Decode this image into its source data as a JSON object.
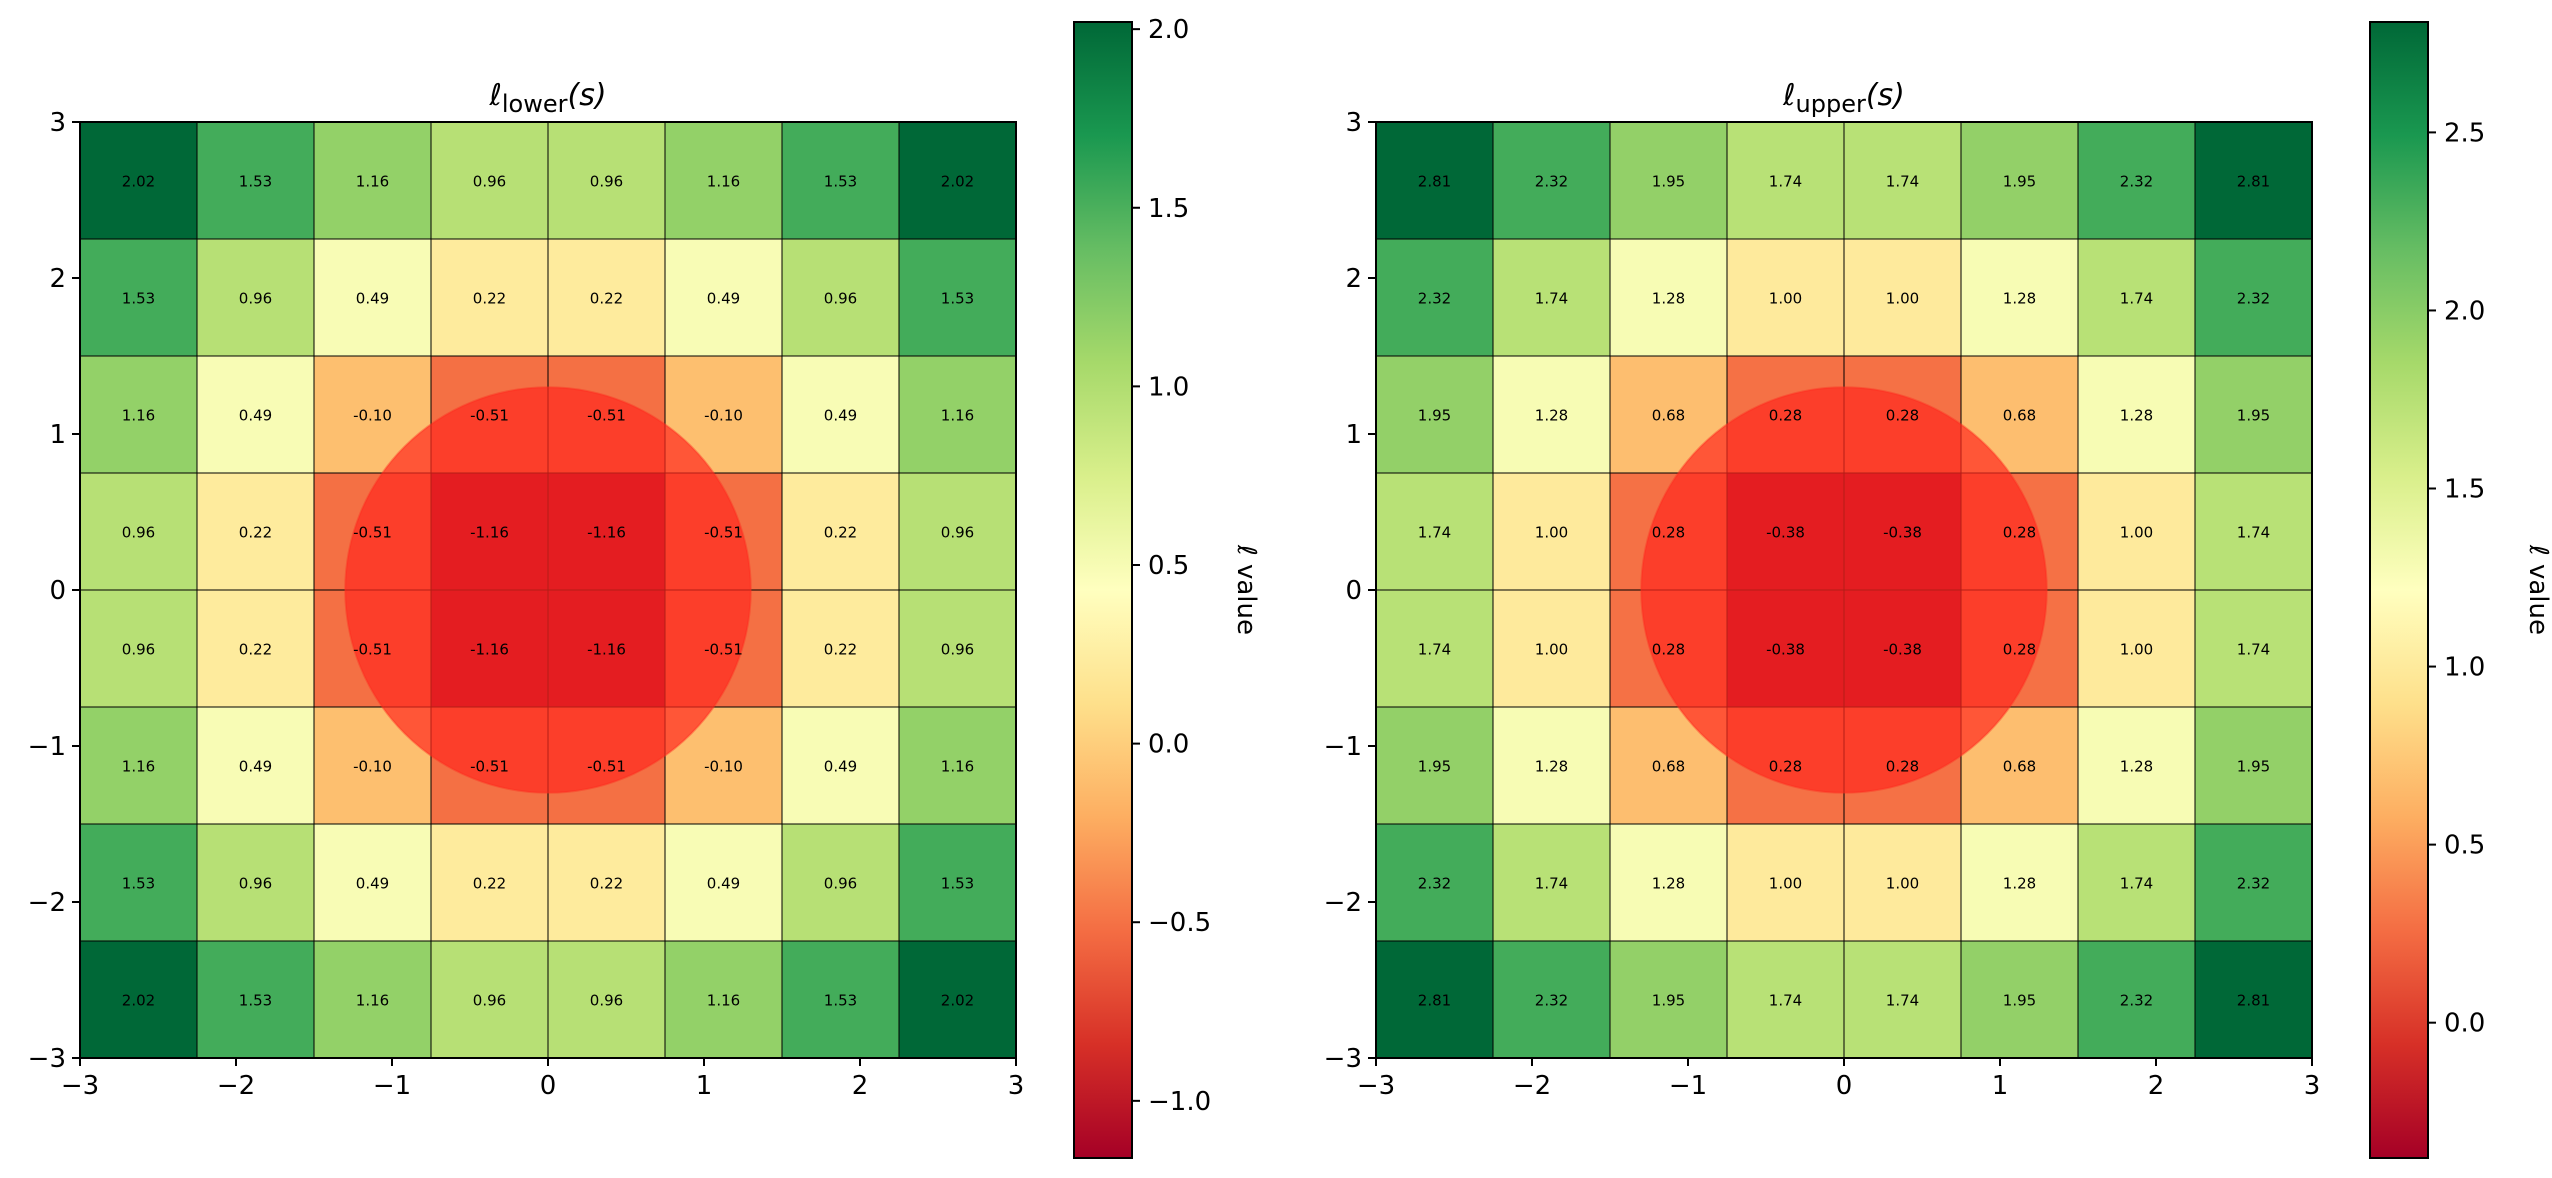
{
  "chart_data": [
    {
      "type": "heatmap",
      "title_symbol": "ℓ",
      "title_subscript": "lower",
      "title_arg": "(s)",
      "xlim": [
        -3,
        3
      ],
      "ylim": [
        -3,
        3
      ],
      "xticks": [
        -3,
        -2,
        -1,
        0,
        1,
        2,
        3
      ],
      "yticks": [
        -3,
        -2,
        -1,
        0,
        1,
        2,
        3
      ],
      "tick_labels": [
        "−3",
        "−2",
        "−1",
        "0",
        "1",
        "2",
        "3"
      ],
      "grid_size": 8,
      "rows_top_to_bottom": [
        [
          "2.02",
          "1.53",
          "1.16",
          "0.96",
          "0.96",
          "1.16",
          "1.53",
          "2.02"
        ],
        [
          "1.53",
          "0.96",
          "0.49",
          "0.22",
          "0.22",
          "0.49",
          "0.96",
          "1.53"
        ],
        [
          "1.16",
          "0.49",
          "-0.10",
          "-0.51",
          "-0.51",
          "-0.10",
          "0.49",
          "1.16"
        ],
        [
          "0.96",
          "0.22",
          "-0.51",
          "-1.16",
          "-1.16",
          "-0.51",
          "0.22",
          "0.96"
        ],
        [
          "0.96",
          "0.22",
          "-0.51",
          "-1.16",
          "-1.16",
          "-0.51",
          "0.22",
          "0.96"
        ],
        [
          "1.16",
          "0.49",
          "-0.10",
          "-0.51",
          "-0.51",
          "-0.10",
          "0.49",
          "1.16"
        ],
        [
          "1.53",
          "0.96",
          "0.49",
          "0.22",
          "0.22",
          "0.49",
          "0.96",
          "1.53"
        ],
        [
          "2.02",
          "1.53",
          "1.16",
          "0.96",
          "0.96",
          "1.16",
          "1.53",
          "2.02"
        ]
      ],
      "vmin": -1.16,
      "vmax": 2.02,
      "colormap": "RdYlGn",
      "circle": {
        "center": [
          0,
          0
        ],
        "radius": 1.3,
        "color": "#ff2a1f",
        "opacity": 0.7
      },
      "colorbar": {
        "label": "ℓ value",
        "ticks": [
          -1.0,
          -0.5,
          0.0,
          0.5,
          1.0,
          1.5,
          2.0
        ],
        "tick_labels": [
          "−1.0",
          "−0.5",
          "0.0",
          "0.5",
          "1.0",
          "1.5",
          "2.0"
        ]
      }
    },
    {
      "type": "heatmap",
      "title_symbol": "ℓ",
      "title_subscript": "upper",
      "title_arg": "(s)",
      "xlim": [
        -3,
        3
      ],
      "ylim": [
        -3,
        3
      ],
      "xticks": [
        -3,
        -2,
        -1,
        0,
        1,
        2,
        3
      ],
      "yticks": [
        -3,
        -2,
        -1,
        0,
        1,
        2,
        3
      ],
      "tick_labels": [
        "−3",
        "−2",
        "−1",
        "0",
        "1",
        "2",
        "3"
      ],
      "grid_size": 8,
      "rows_top_to_bottom": [
        [
          "2.81",
          "2.32",
          "1.95",
          "1.74",
          "1.74",
          "1.95",
          "2.32",
          "2.81"
        ],
        [
          "2.32",
          "1.74",
          "1.28",
          "1.00",
          "1.00",
          "1.28",
          "1.74",
          "2.32"
        ],
        [
          "1.95",
          "1.28",
          "0.68",
          "0.28",
          "0.28",
          "0.68",
          "1.28",
          "1.95"
        ],
        [
          "1.74",
          "1.00",
          "0.28",
          "-0.38",
          "-0.38",
          "0.28",
          "1.00",
          "1.74"
        ],
        [
          "1.74",
          "1.00",
          "0.28",
          "-0.38",
          "-0.38",
          "0.28",
          "1.00",
          "1.74"
        ],
        [
          "1.95",
          "1.28",
          "0.68",
          "0.28",
          "0.28",
          "0.68",
          "1.28",
          "1.95"
        ],
        [
          "2.32",
          "1.74",
          "1.28",
          "1.00",
          "1.00",
          "1.28",
          "1.74",
          "2.32"
        ],
        [
          "2.81",
          "2.32",
          "1.95",
          "1.74",
          "1.74",
          "1.95",
          "2.32",
          "2.81"
        ]
      ],
      "vmin": -0.38,
      "vmax": 2.81,
      "colormap": "RdYlGn",
      "circle": {
        "center": [
          0,
          0
        ],
        "radius": 1.3,
        "color": "#ff2a1f",
        "opacity": 0.7
      },
      "colorbar": {
        "label": "ℓ value",
        "ticks": [
          0.0,
          0.5,
          1.0,
          1.5,
          2.0,
          2.5
        ],
        "tick_labels": [
          "0.0",
          "0.5",
          "1.0",
          "1.5",
          "2.0",
          "2.5"
        ]
      }
    }
  ]
}
